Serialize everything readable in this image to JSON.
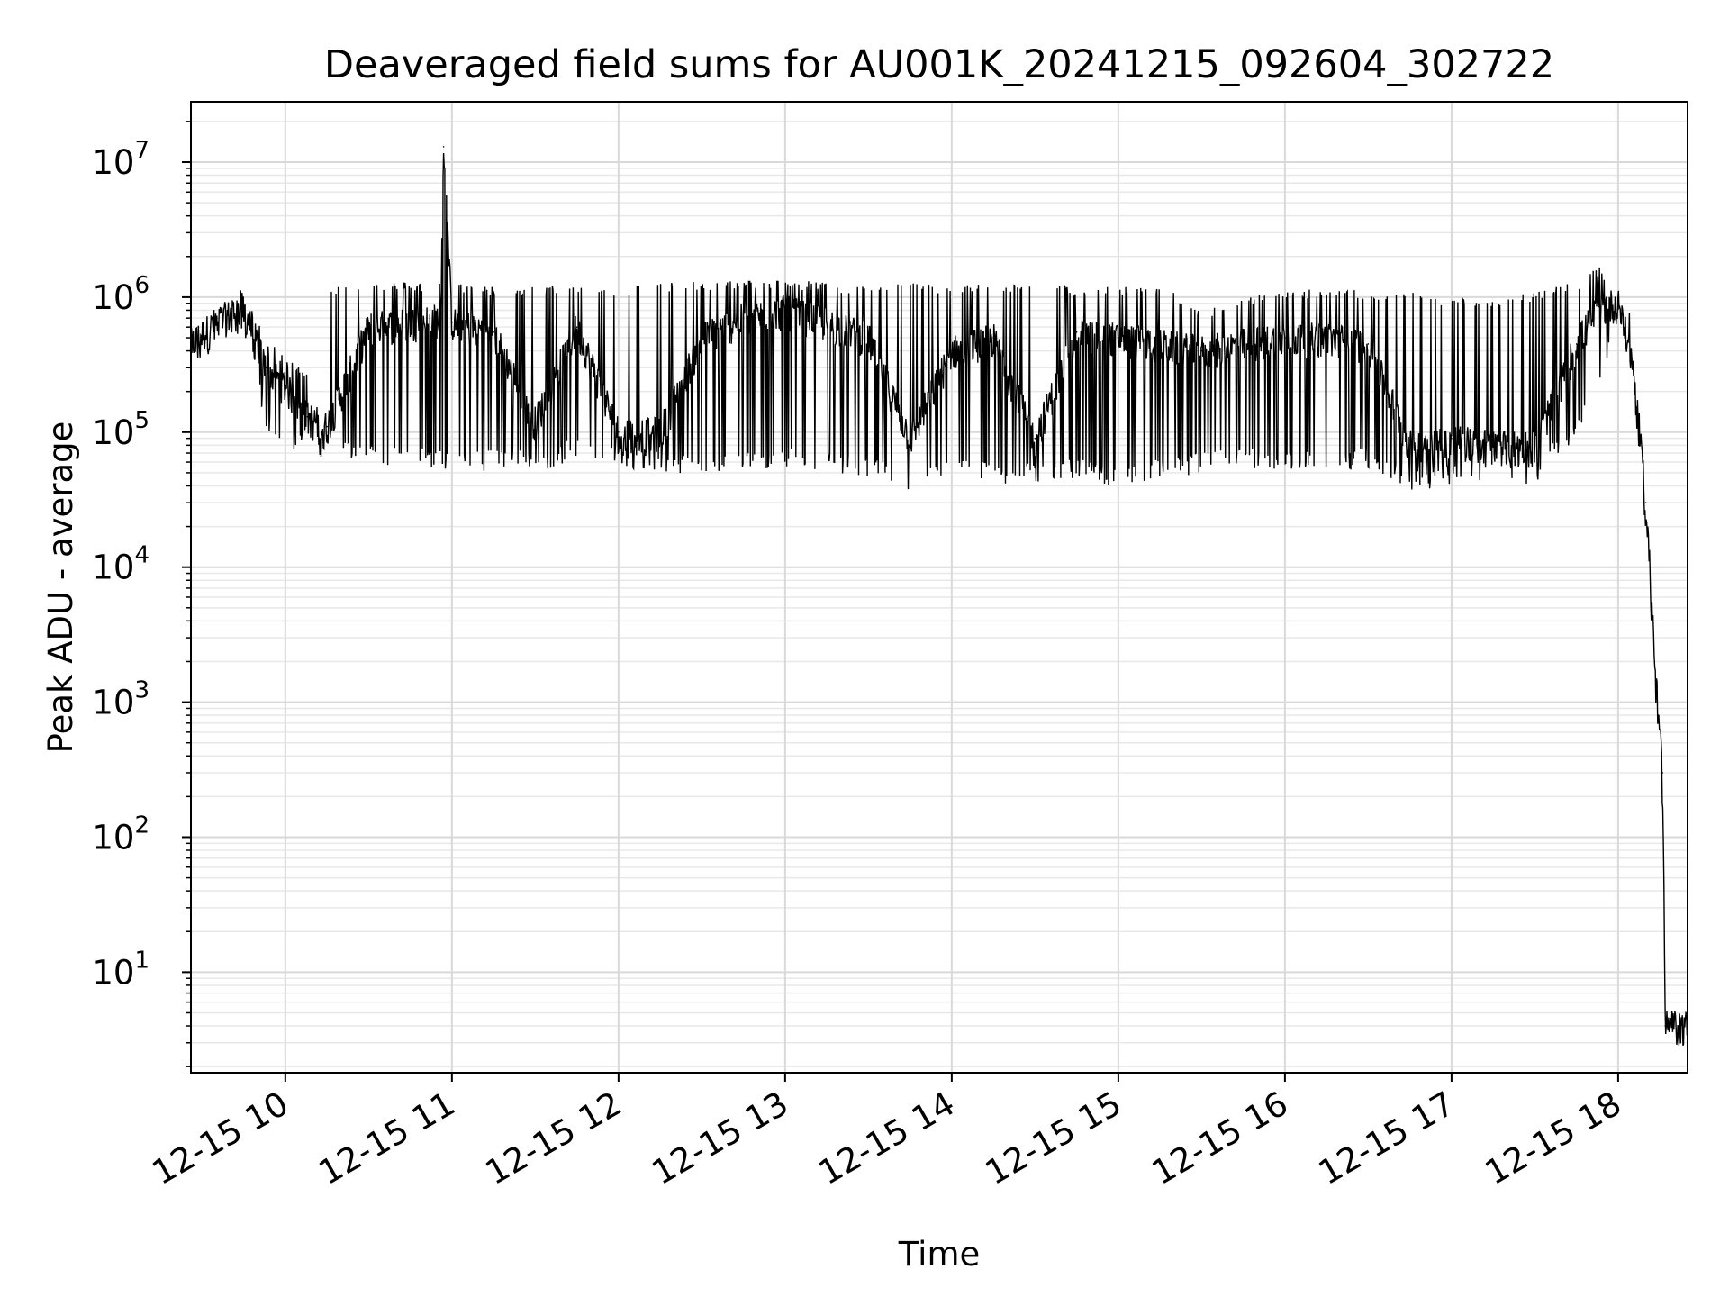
{
  "chart_data": {
    "type": "line",
    "title": "Deaveraged field sums for AU001K_20241215_092604_302722",
    "xlabel": "Time",
    "ylabel": "Peak ADU - average",
    "yscale": "log",
    "grid": true,
    "legend": "none",
    "xlim": [
      "2024-12-15 09:26",
      "2024-12-15 18:25"
    ],
    "ylim": [
      1.8,
      28000000
    ],
    "x_ticks": [
      "12-15 10",
      "12-15 11",
      "12-15 12",
      "12-15 13",
      "12-15 14",
      "12-15 15",
      "12-15 16",
      "12-15 17",
      "12-15 18"
    ],
    "y_ticks": [
      {
        "base": "10",
        "exp": "1",
        "value": 10
      },
      {
        "base": "10",
        "exp": "2",
        "value": 100
      },
      {
        "base": "10",
        "exp": "3",
        "value": 1000
      },
      {
        "base": "10",
        "exp": "4",
        "value": 10000
      },
      {
        "base": "10",
        "exp": "5",
        "value": 100000
      },
      {
        "base": "10",
        "exp": "6",
        "value": 1000000
      },
      {
        "base": "10",
        "exp": "7",
        "value": 10000000
      }
    ],
    "series": [
      {
        "color": "#000000",
        "x": [
          "2024-12-15 09:26",
          "2024-12-15 09:35",
          "2024-12-15 09:45",
          "2024-12-15 09:53",
          "2024-12-15 10:00",
          "2024-12-15 10:08",
          "2024-12-15 10:15",
          "2024-12-15 10:30",
          "2024-12-15 10:45",
          "2024-12-15 10:56",
          "2024-12-15 10:57",
          "2024-12-15 11:00",
          "2024-12-15 11:15",
          "2024-12-15 11:30",
          "2024-12-15 11:45",
          "2024-12-15 12:00",
          "2024-12-15 12:15",
          "2024-12-15 12:30",
          "2024-12-15 12:45",
          "2024-12-15 13:00",
          "2024-12-15 13:15",
          "2024-12-15 13:30",
          "2024-12-15 13:45",
          "2024-12-15 14:00",
          "2024-12-15 14:15",
          "2024-12-15 14:30",
          "2024-12-15 14:45",
          "2024-12-15 15:00",
          "2024-12-15 15:15",
          "2024-12-15 15:30",
          "2024-12-15 15:45",
          "2024-12-15 16:00",
          "2024-12-15 16:15",
          "2024-12-15 16:30",
          "2024-12-15 16:45",
          "2024-12-15 17:00",
          "2024-12-15 17:15",
          "2024-12-15 17:30",
          "2024-12-15 17:45",
          "2024-12-15 17:53",
          "2024-12-15 18:00",
          "2024-12-15 18:05",
          "2024-12-15 18:10",
          "2024-12-15 18:14",
          "2024-12-15 18:16",
          "2024-12-15 18:17",
          "2024-12-15 18:25"
        ],
        "y": [
          450000,
          650000,
          850000,
          300000,
          220000,
          130000,
          110000,
          600000,
          650000,
          700000,
          13000000,
          650000,
          550000,
          120000,
          600000,
          100000,
          100000,
          500000,
          700000,
          800000,
          650000,
          500000,
          90000,
          400000,
          500000,
          90000,
          550000,
          500000,
          450000,
          400000,
          450000,
          500000,
          500000,
          450000,
          80000,
          90000,
          80000,
          80000,
          450000,
          850000,
          900000,
          350000,
          30000,
          1300,
          300,
          4,
          4
        ],
        "envelope_high": [
          600000,
          800000,
          1200000,
          500000,
          350000,
          300000,
          1200000,
          1300000,
          1300000,
          1300000,
          13000000,
          1300000,
          1200000,
          1200000,
          1250000,
          1200000,
          1300000,
          1300000,
          1350000,
          1350000,
          1300000,
          1200000,
          1300000,
          1200000,
          1300000,
          1250000,
          1200000,
          1200000,
          1250000,
          800000,
          1000000,
          1100000,
          1200000,
          1100000,
          1100000,
          1000000,
          1000000,
          1100000,
          1300000,
          1700000,
          950000,
          800000,
          30000,
          1400,
          300,
          4,
          4
        ],
        "envelope_low": [
          300000,
          450000,
          600000,
          120000,
          80000,
          80000,
          70000,
          65000,
          60000,
          60000,
          60000,
          50000,
          60000,
          55000,
          70000,
          60000,
          55000,
          50000,
          55000,
          60000,
          55000,
          50000,
          40000,
          50000,
          45000,
          45000,
          50000,
          40000,
          50000,
          55000,
          60000,
          55000,
          55000,
          60000,
          40000,
          45000,
          50000,
          45000,
          100000,
          200000,
          800000,
          300000,
          20000,
          700,
          150,
          4,
          4
        ]
      }
    ]
  }
}
